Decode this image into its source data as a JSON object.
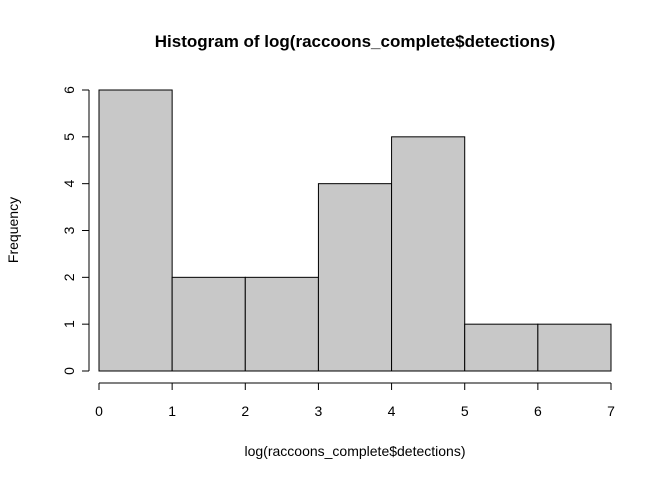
{
  "chart_data": {
    "type": "bar",
    "title": "Histogram of log(raccoons_complete$detections)",
    "xlabel": "log(raccoons_complete$detections)",
    "ylabel": "Frequency",
    "bins": [
      {
        "x0": 0,
        "x1": 1,
        "value": 6
      },
      {
        "x0": 1,
        "x1": 2,
        "value": 2
      },
      {
        "x0": 2,
        "x1": 3,
        "value": 2
      },
      {
        "x0": 3,
        "x1": 4,
        "value": 4
      },
      {
        "x0": 4,
        "x1": 5,
        "value": 5
      },
      {
        "x0": 5,
        "x1": 6,
        "value": 1
      },
      {
        "x0": 6,
        "x1": 7,
        "value": 1
      }
    ],
    "xlim": [
      0,
      7
    ],
    "ylim": [
      0,
      6
    ],
    "x_ticks": [
      "0",
      "1",
      "2",
      "3",
      "4",
      "5",
      "6",
      "7"
    ],
    "y_ticks": [
      "0",
      "1",
      "2",
      "3",
      "4",
      "5",
      "6"
    ],
    "bar_color": "#c8c8c8",
    "grid": false,
    "legend": "none"
  }
}
